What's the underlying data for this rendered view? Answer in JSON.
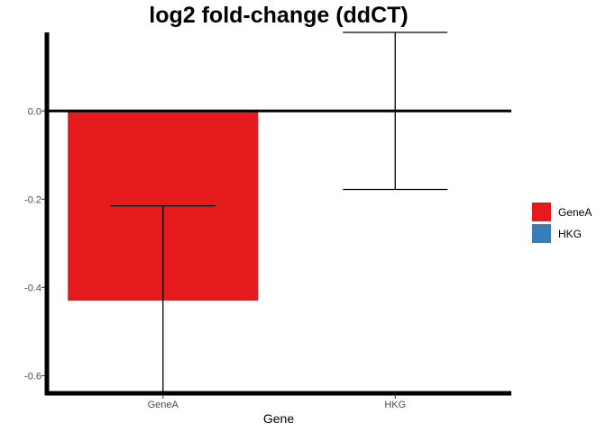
{
  "chart_data": {
    "type": "bar",
    "title": "log2 fold-change (ddCT)",
    "xlabel": "Gene",
    "ylabel": "",
    "categories": [
      "GeneA",
      "HKG"
    ],
    "values": [
      -0.43,
      0.0
    ],
    "error_bars": [
      {
        "category": "GeneA",
        "low": -0.645,
        "high": -0.215
      },
      {
        "category": "HKG",
        "low": -0.178,
        "high": 0.178
      }
    ],
    "ylim": [
      -0.64,
      0.178
    ],
    "y_ticks": [
      0.0,
      -0.2,
      -0.4,
      -0.6
    ],
    "y_tick_labels": [
      "0.0",
      "-0.2",
      "-0.4",
      "-0.6"
    ],
    "legend": {
      "placement": "right",
      "entries": [
        {
          "label": "GeneA",
          "color": "#e41a1c"
        },
        {
          "label": "HKG",
          "color": "#377eb8"
        }
      ]
    },
    "colors": {
      "GeneA": "#e41a1c",
      "HKG": "#377eb8"
    },
    "grid": false
  }
}
